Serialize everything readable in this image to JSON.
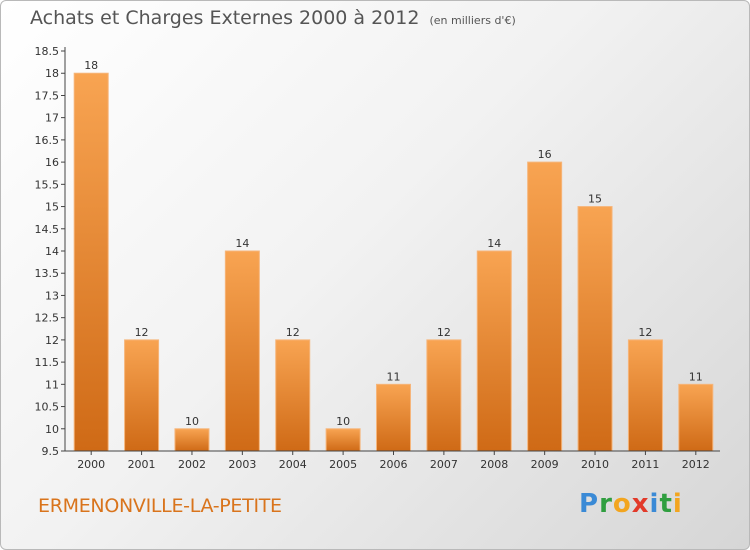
{
  "chart_data": {
    "type": "bar",
    "title": "Achats et Charges Externes 2000 à 2012",
    "unit_note": "(en milliers d'€)",
    "xlabel": "",
    "ylabel": "",
    "categories": [
      "2000",
      "2001",
      "2002",
      "2003",
      "2004",
      "2005",
      "2006",
      "2007",
      "2008",
      "2009",
      "2010",
      "2011",
      "2012"
    ],
    "values": [
      18,
      12,
      10,
      14,
      12,
      10,
      11,
      12,
      14,
      16,
      15,
      12,
      11
    ],
    "ylim": [
      9.5,
      18.5
    ],
    "yticks": [
      "9.5",
      "10",
      "10.5",
      "11",
      "11.5",
      "12",
      "12.5",
      "13",
      "13.5",
      "14",
      "14.5",
      "15",
      "15.5",
      "16",
      "16.5",
      "17",
      "17.5",
      "18",
      "18.5"
    ],
    "grid": false,
    "legend": "none",
    "bar_color": "#f08a2c"
  },
  "footer": {
    "town": "ERMENONVILLE-LA-PETITE",
    "brand_letters": [
      {
        "ch": "P",
        "color": "#3a8ad6"
      },
      {
        "ch": "r",
        "color": "#2f9e3f"
      },
      {
        "ch": "o",
        "color": "#f2a51f"
      },
      {
        "ch": "x",
        "color": "#e23a2a"
      },
      {
        "ch": "i",
        "color": "#3a8ad6"
      },
      {
        "ch": "t",
        "color": "#2f9e3f"
      },
      {
        "ch": "i",
        "color": "#f2a51f"
      }
    ]
  }
}
